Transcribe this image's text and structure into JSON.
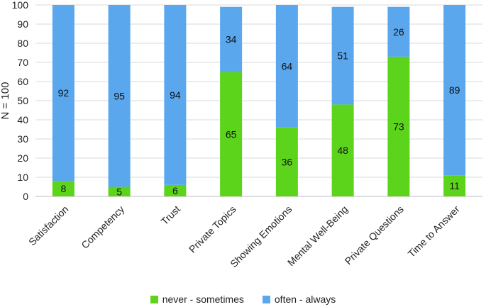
{
  "chart_data": {
    "type": "bar",
    "stacked": true,
    "categories": [
      "Satisfaction",
      "Competency",
      "Trust",
      "Private Topics",
      "Showing Emotions",
      "Mental Well-Being",
      "Private Questions",
      "Time to Answer"
    ],
    "series": [
      {
        "name": "never - sometimes",
        "color": "#5dd41c",
        "values": [
          8,
          5,
          6,
          65,
          36,
          48,
          73,
          11
        ]
      },
      {
        "name": "often - always",
        "color": "#5aa7ee",
        "values": [
          92,
          95,
          94,
          34,
          64,
          51,
          26,
          89
        ]
      }
    ],
    "ylabel": "N = 100",
    "ylim": [
      0,
      100
    ],
    "yticks": [
      0,
      10,
      20,
      30,
      40,
      50,
      60,
      70,
      80,
      90,
      100
    ],
    "grid": true,
    "legend": "bottom"
  }
}
